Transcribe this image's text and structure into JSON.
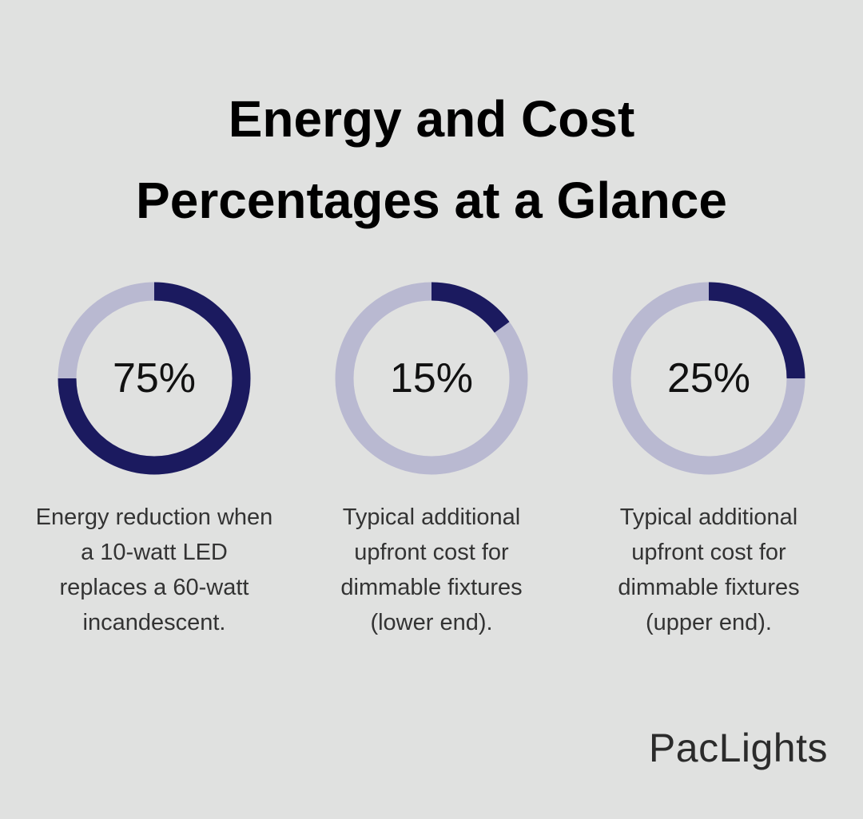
{
  "title": "Energy and Cost Percentages at a Glance",
  "logo": "PacLights",
  "chart_data": [
    {
      "type": "donut",
      "values": [
        75
      ],
      "value_labels": [
        "75%"
      ],
      "color": "#1b1a5f",
      "track_color": "#b9b9d1",
      "caption": "Energy reduction when a 10-watt LED replaces a 60-watt incandescent."
    },
    {
      "type": "donut",
      "values": [
        15
      ],
      "value_labels": [
        "15%"
      ],
      "color": "#1b1a5f",
      "track_color": "#b9b9d1",
      "caption": "Typical additional upfront cost for dimmable fixtures (lower end)."
    },
    {
      "type": "donut",
      "values": [
        25
      ],
      "value_labels": [
        "25%"
      ],
      "color": "#1b1a5f",
      "track_color": "#b9b9d1",
      "caption": "Typical additional upfront cost for dimmable fixtures (upper end)."
    }
  ]
}
